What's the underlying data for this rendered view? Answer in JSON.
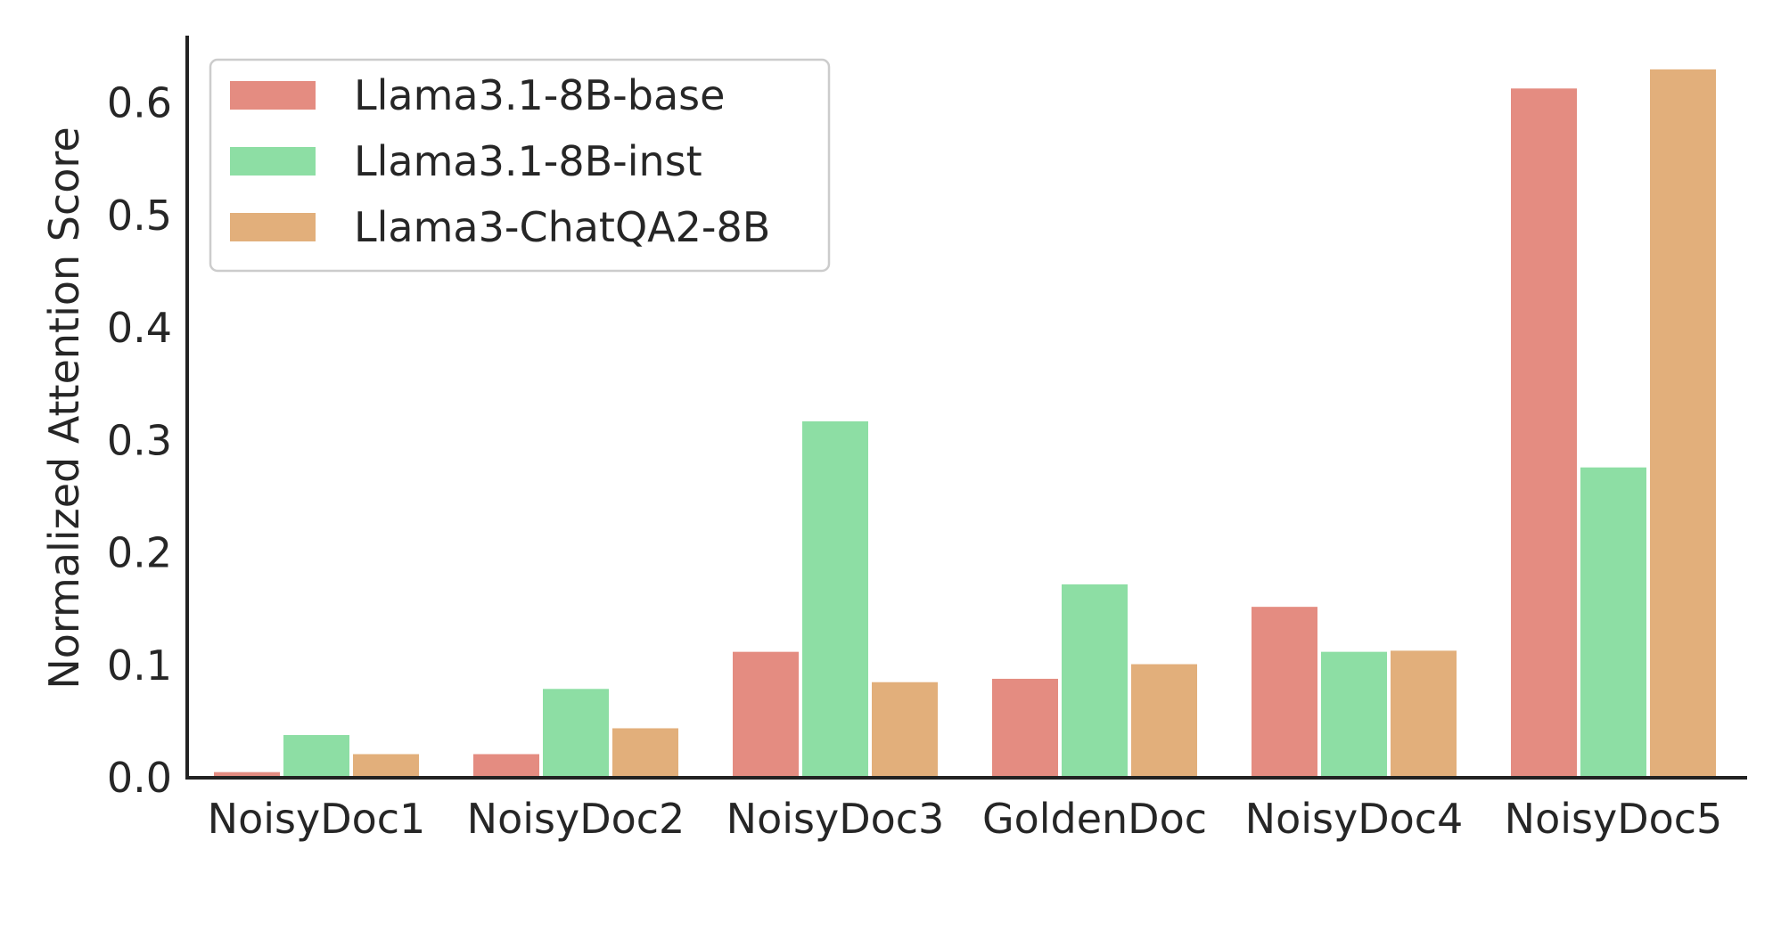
{
  "chart_data": {
    "type": "bar",
    "categories": [
      "NoisyDoc1",
      "NoisyDoc2",
      "NoisyDoc3",
      "GoldenDoc",
      "NoisyDoc4",
      "NoisyDoc5"
    ],
    "series": [
      {
        "name": "Llama3.1-8B-base",
        "color": "#e48c81",
        "values": [
          0.005,
          0.021,
          0.112,
          0.088,
          0.152,
          0.613
        ]
      },
      {
        "name": "Llama3.1-8B-inst",
        "color": "#8ddea4",
        "values": [
          0.038,
          0.079,
          0.317,
          0.172,
          0.112,
          0.276
        ]
      },
      {
        "name": "Llama3-ChatQA2-8B",
        "color": "#e2af7b",
        "values": [
          0.021,
          0.044,
          0.085,
          0.101,
          0.113,
          0.63
        ]
      }
    ],
    "title": "",
    "xlabel": "",
    "ylabel": "Normalized Attention Score",
    "ylim": [
      0,
      0.66
    ],
    "yticks": [
      0.0,
      0.1,
      0.2,
      0.3,
      0.4,
      0.5,
      0.6
    ],
    "ytick_labels": [
      "0.0",
      "0.1",
      "0.2",
      "0.3",
      "0.4",
      "0.5",
      "0.6"
    ],
    "grid": false,
    "legend_position": "top-left"
  }
}
